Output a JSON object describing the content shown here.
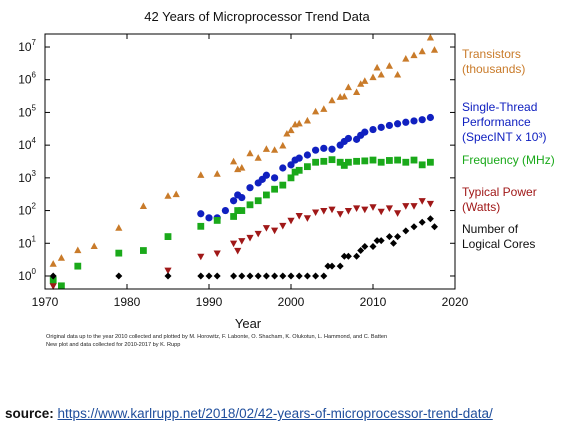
{
  "chart_data": {
    "type": "scatter",
    "title": "42 Years of Microprocessor Trend Data",
    "xlabel": "Year",
    "ylabel": "",
    "xlim": [
      1970,
      2020
    ],
    "ylim": [
      0.4,
      25000000
    ],
    "yscale": "log",
    "x_ticks": [
      "1970",
      "1980",
      "1990",
      "2000",
      "2010",
      "2020"
    ],
    "y_ticks": [
      {
        "value": 1,
        "base": "10",
        "exp": "0"
      },
      {
        "value": 10,
        "base": "10",
        "exp": "1"
      },
      {
        "value": 100,
        "base": "10",
        "exp": "2"
      },
      {
        "value": 1000,
        "base": "10",
        "exp": "3"
      },
      {
        "value": 10000,
        "base": "10",
        "exp": "4"
      },
      {
        "value": 100000,
        "base": "10",
        "exp": "5"
      },
      {
        "value": 1000000,
        "base": "10",
        "exp": "6"
      },
      {
        "value": 10000000,
        "base": "10",
        "exp": "7"
      }
    ],
    "grid": false,
    "legend_position": "right",
    "series": [
      {
        "name": "Transistors\n(thousands)",
        "color": "#c97b2a",
        "marker": "triangle-up",
        "points": [
          [
            1971,
            2.3
          ],
          [
            1972,
            3.5
          ],
          [
            1974,
            6
          ],
          [
            1976,
            8
          ],
          [
            1979,
            29
          ],
          [
            1982,
            134
          ],
          [
            1985,
            275
          ],
          [
            1986,
            310
          ],
          [
            1989,
            1200
          ],
          [
            1991,
            1300
          ],
          [
            1993,
            3100
          ],
          [
            1993.5,
            1800
          ],
          [
            1994,
            2000
          ],
          [
            1995,
            5500
          ],
          [
            1996,
            4000
          ],
          [
            1997,
            7500
          ],
          [
            1998,
            7000
          ],
          [
            1999,
            9500
          ],
          [
            1999.5,
            22000
          ],
          [
            2000,
            28000
          ],
          [
            2000.5,
            42000
          ],
          [
            2001,
            45000
          ],
          [
            2002,
            55000
          ],
          [
            2003,
            105000
          ],
          [
            2004,
            125000
          ],
          [
            2005,
            230000
          ],
          [
            2006,
            290000
          ],
          [
            2006.5,
            300000
          ],
          [
            2007,
            580000
          ],
          [
            2008,
            410000
          ],
          [
            2008.5,
            730000
          ],
          [
            2009,
            900000
          ],
          [
            2010,
            1170000
          ],
          [
            2010.5,
            2300000
          ],
          [
            2011,
            1400000
          ],
          [
            2012,
            2600000
          ],
          [
            2013,
            1400000
          ],
          [
            2014,
            4300000
          ],
          [
            2015,
            5500000
          ],
          [
            2016,
            7200000
          ],
          [
            2017,
            19000000
          ],
          [
            2017.5,
            8000000
          ]
        ]
      },
      {
        "name": "Single-Thread\nPerformance\n(SpecINT x 10³)",
        "color": "#1020c0",
        "marker": "circle",
        "points": [
          [
            1989,
            80
          ],
          [
            1990,
            60
          ],
          [
            1991,
            60
          ],
          [
            1992,
            100
          ],
          [
            1993,
            200
          ],
          [
            1993.5,
            300
          ],
          [
            1994,
            250
          ],
          [
            1995,
            500
          ],
          [
            1996,
            700
          ],
          [
            1996.5,
            900
          ],
          [
            1997,
            1200
          ],
          [
            1998,
            1000
          ],
          [
            1999,
            2000
          ],
          [
            2000,
            2500
          ],
          [
            2000.5,
            3500
          ],
          [
            2001,
            4000
          ],
          [
            2002,
            5000
          ],
          [
            2003,
            7000
          ],
          [
            2004,
            8000
          ],
          [
            2005,
            7500
          ],
          [
            2006,
            10000
          ],
          [
            2006.5,
            13000
          ],
          [
            2007,
            16000
          ],
          [
            2008,
            15000
          ],
          [
            2008.5,
            20000
          ],
          [
            2009,
            25000
          ],
          [
            2010,
            30000
          ],
          [
            2011,
            35000
          ],
          [
            2012,
            40000
          ],
          [
            2013,
            45000
          ],
          [
            2014,
            50000
          ],
          [
            2015,
            55000
          ],
          [
            2016,
            60000
          ],
          [
            2017,
            70000
          ]
        ]
      },
      {
        "name": "Frequency (MHz)",
        "color": "#1aa91a",
        "marker": "square",
        "points": [
          [
            1971,
            0.75
          ],
          [
            1972,
            0.5
          ],
          [
            1974,
            2
          ],
          [
            1979,
            5
          ],
          [
            1982,
            6
          ],
          [
            1985,
            16
          ],
          [
            1989,
            33
          ],
          [
            1991,
            50
          ],
          [
            1993,
            66
          ],
          [
            1993.5,
            100
          ],
          [
            1994,
            100
          ],
          [
            1995,
            150
          ],
          [
            1996,
            200
          ],
          [
            1997,
            300
          ],
          [
            1998,
            450
          ],
          [
            1999,
            600
          ],
          [
            2000,
            1000
          ],
          [
            2000.5,
            1500
          ],
          [
            2001,
            1700
          ],
          [
            2002,
            2200
          ],
          [
            2003,
            3000
          ],
          [
            2004,
            3200
          ],
          [
            2005,
            3600
          ],
          [
            2006,
            3000
          ],
          [
            2006.5,
            2400
          ],
          [
            2007,
            3000
          ],
          [
            2008,
            3200
          ],
          [
            2009,
            3300
          ],
          [
            2010,
            3500
          ],
          [
            2011,
            3000
          ],
          [
            2012,
            3400
          ],
          [
            2013,
            3500
          ],
          [
            2014,
            3000
          ],
          [
            2015,
            3500
          ],
          [
            2016,
            2500
          ],
          [
            2017,
            3000
          ]
        ]
      },
      {
        "name": "Typical Power\n(Watts)",
        "color": "#a01818",
        "marker": "triangle-down",
        "points": [
          [
            1971,
            0.5
          ],
          [
            1985,
            1.5
          ],
          [
            1989,
            4
          ],
          [
            1991,
            5
          ],
          [
            1993,
            10
          ],
          [
            1993.5,
            6
          ],
          [
            1994,
            12
          ],
          [
            1995,
            15
          ],
          [
            1996,
            20
          ],
          [
            1997,
            30
          ],
          [
            1998,
            25
          ],
          [
            1999,
            35
          ],
          [
            2000,
            50
          ],
          [
            2001,
            70
          ],
          [
            2002,
            60
          ],
          [
            2003,
            90
          ],
          [
            2004,
            100
          ],
          [
            2005,
            110
          ],
          [
            2006,
            80
          ],
          [
            2007,
            100
          ],
          [
            2008,
            120
          ],
          [
            2009,
            110
          ],
          [
            2010,
            130
          ],
          [
            2011,
            95
          ],
          [
            2012,
            120
          ],
          [
            2013,
            85
          ],
          [
            2014,
            140
          ],
          [
            2015,
            140
          ],
          [
            2016,
            200
          ],
          [
            2017,
            165
          ]
        ]
      },
      {
        "name": "Number of\nLogical Cores",
        "color": "#000000",
        "marker": "diamond",
        "points": [
          [
            1971,
            1
          ],
          [
            1979,
            1
          ],
          [
            1985,
            1
          ],
          [
            1989,
            1
          ],
          [
            1990,
            1
          ],
          [
            1991,
            1
          ],
          [
            1993,
            1
          ],
          [
            1994,
            1
          ],
          [
            1995,
            1
          ],
          [
            1996,
            1
          ],
          [
            1997,
            1
          ],
          [
            1998,
            1
          ],
          [
            1999,
            1
          ],
          [
            2000,
            1
          ],
          [
            2001,
            1
          ],
          [
            2002,
            1
          ],
          [
            2003,
            1
          ],
          [
            2004,
            1
          ],
          [
            2004.5,
            2
          ],
          [
            2005,
            2
          ],
          [
            2006,
            2
          ],
          [
            2006.5,
            4
          ],
          [
            2007,
            4
          ],
          [
            2008,
            4
          ],
          [
            2008.5,
            6
          ],
          [
            2009,
            8
          ],
          [
            2010,
            8
          ],
          [
            2010.5,
            12
          ],
          [
            2011,
            12
          ],
          [
            2012,
            16
          ],
          [
            2012.5,
            10
          ],
          [
            2013,
            16
          ],
          [
            2014,
            24
          ],
          [
            2015,
            32
          ],
          [
            2016,
            44
          ],
          [
            2017,
            56
          ],
          [
            2017.5,
            32
          ]
        ]
      }
    ]
  },
  "notes": {
    "line1": "Original data up to the year 2010 collected and plotted by M. Horowitz, F. Labonte, O. Shacham, K. Olukotun, L. Hammond, and C. Batten",
    "line2": "New plot and data collected for 2010-2017 by K. Rupp"
  },
  "source": {
    "label": "source:",
    "url_text": "https://www.karlrupp.net/2018/02/42-years-of-microprocessor-trend-data/",
    "url_color": "#1f4e9c"
  }
}
